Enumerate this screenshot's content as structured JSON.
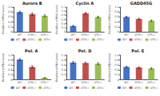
{
  "chart_data": [
    {
      "type": "bar",
      "title": "Aurora B",
      "ylabel": "Relative mRNA Level",
      "categories": [
        "WT",
        "ATM-/-",
        "ATR-/-"
      ],
      "values": [
        0.8,
        0.72,
        0.65
      ],
      "errors": [
        0.04,
        0.05,
        0.04
      ],
      "colors": [
        "#4472c4",
        "#c0504d",
        "#9bbb59"
      ],
      "ylim": [
        0,
        1.0
      ],
      "yticks": [
        0,
        0.2,
        0.4,
        0.6,
        0.8,
        {
          "value": 1.0,
          "label": "1.0"
        }
      ],
      "grid": false,
      "legend": "bottom"
    },
    {
      "type": "bar",
      "title": "Cyclin A",
      "ylabel": "Relative mRNA Level",
      "categories": [
        "WT",
        "ATM-/-",
        "ATR-/-"
      ],
      "values": [
        0.28,
        0.9,
        0.72
      ],
      "errors": [
        0.03,
        0.05,
        0.04
      ],
      "colors": [
        "#4472c4",
        "#c0504d",
        "#9bbb59"
      ],
      "ylim": [
        0,
        1.2
      ],
      "yticks": [
        0,
        0.2,
        0.4,
        0.6,
        0.8,
        {
          "value": 1.0,
          "label": "1.0"
        },
        1.2
      ],
      "grid": false,
      "legend": "bottom"
    },
    {
      "type": "bar",
      "title": "GADD45G",
      "ylabel": "Relative mRNA Level",
      "categories": [
        "WT",
        "ATM-/-",
        "ATR-/-"
      ],
      "values": [
        0.6,
        0.52,
        0.45
      ],
      "errors": [
        0.03,
        0.03,
        0.03
      ],
      "colors": [
        "#4472c4",
        "#c0504d",
        "#9bbb59"
      ],
      "ylim": [
        0,
        1.0
      ],
      "yticks": [
        0,
        0.2,
        0.4,
        0.6,
        0.8,
        {
          "value": 1.0,
          "label": "1.0"
        }
      ],
      "grid": false,
      "legend": "bottom"
    },
    {
      "type": "bar",
      "title": "Pol. A",
      "ylabel": "Relative mRNA Level",
      "categories": [
        "WT",
        "ATM-/-",
        "ATR-/-"
      ],
      "values": [
        0.82,
        0.52,
        0.08
      ],
      "errors": [
        0.04,
        0.05,
        0.01
      ],
      "colors": [
        "#4472c4",
        "#c0504d",
        "#9bbb59"
      ],
      "ylim": [
        0,
        1.0
      ],
      "yticks": [
        0,
        0.2,
        0.4,
        0.6,
        0.8,
        {
          "value": 1.0,
          "label": "1.0"
        }
      ],
      "grid": false,
      "legend": "bottom"
    },
    {
      "type": "bar",
      "title": "Pol. D",
      "ylabel": "Relative mRNA Level",
      "categories": [
        "WT",
        "ATM-/-",
        "ATR-/-"
      ],
      "values": [
        0.7,
        0.68,
        0.65
      ],
      "errors": [
        0.04,
        0.04,
        0.04
      ],
      "colors": [
        "#4472c4",
        "#c0504d",
        "#9bbb59"
      ],
      "ylim": [
        0,
        1.0
      ],
      "yticks": [
        0,
        0.2,
        0.4,
        0.6,
        0.8,
        {
          "value": 1.0,
          "label": "1.0"
        }
      ],
      "grid": false,
      "legend": "bottom"
    },
    {
      "type": "bar",
      "title": "Pol. E",
      "ylabel": "Relative mRNA Level",
      "categories": [
        "WT",
        "ATM-/-",
        "ATR-/-"
      ],
      "values": [
        0.52,
        0.5,
        0.46
      ],
      "errors": [
        0.03,
        0.03,
        0.03
      ],
      "colors": [
        "#4472c4",
        "#c0504d",
        "#9bbb59"
      ],
      "ylim": [
        0,
        1.0
      ],
      "yticks": [
        0,
        0.2,
        0.4,
        0.6,
        0.8,
        {
          "value": 1.0,
          "label": "1.0"
        }
      ],
      "grid": false,
      "legend": "bottom"
    }
  ]
}
